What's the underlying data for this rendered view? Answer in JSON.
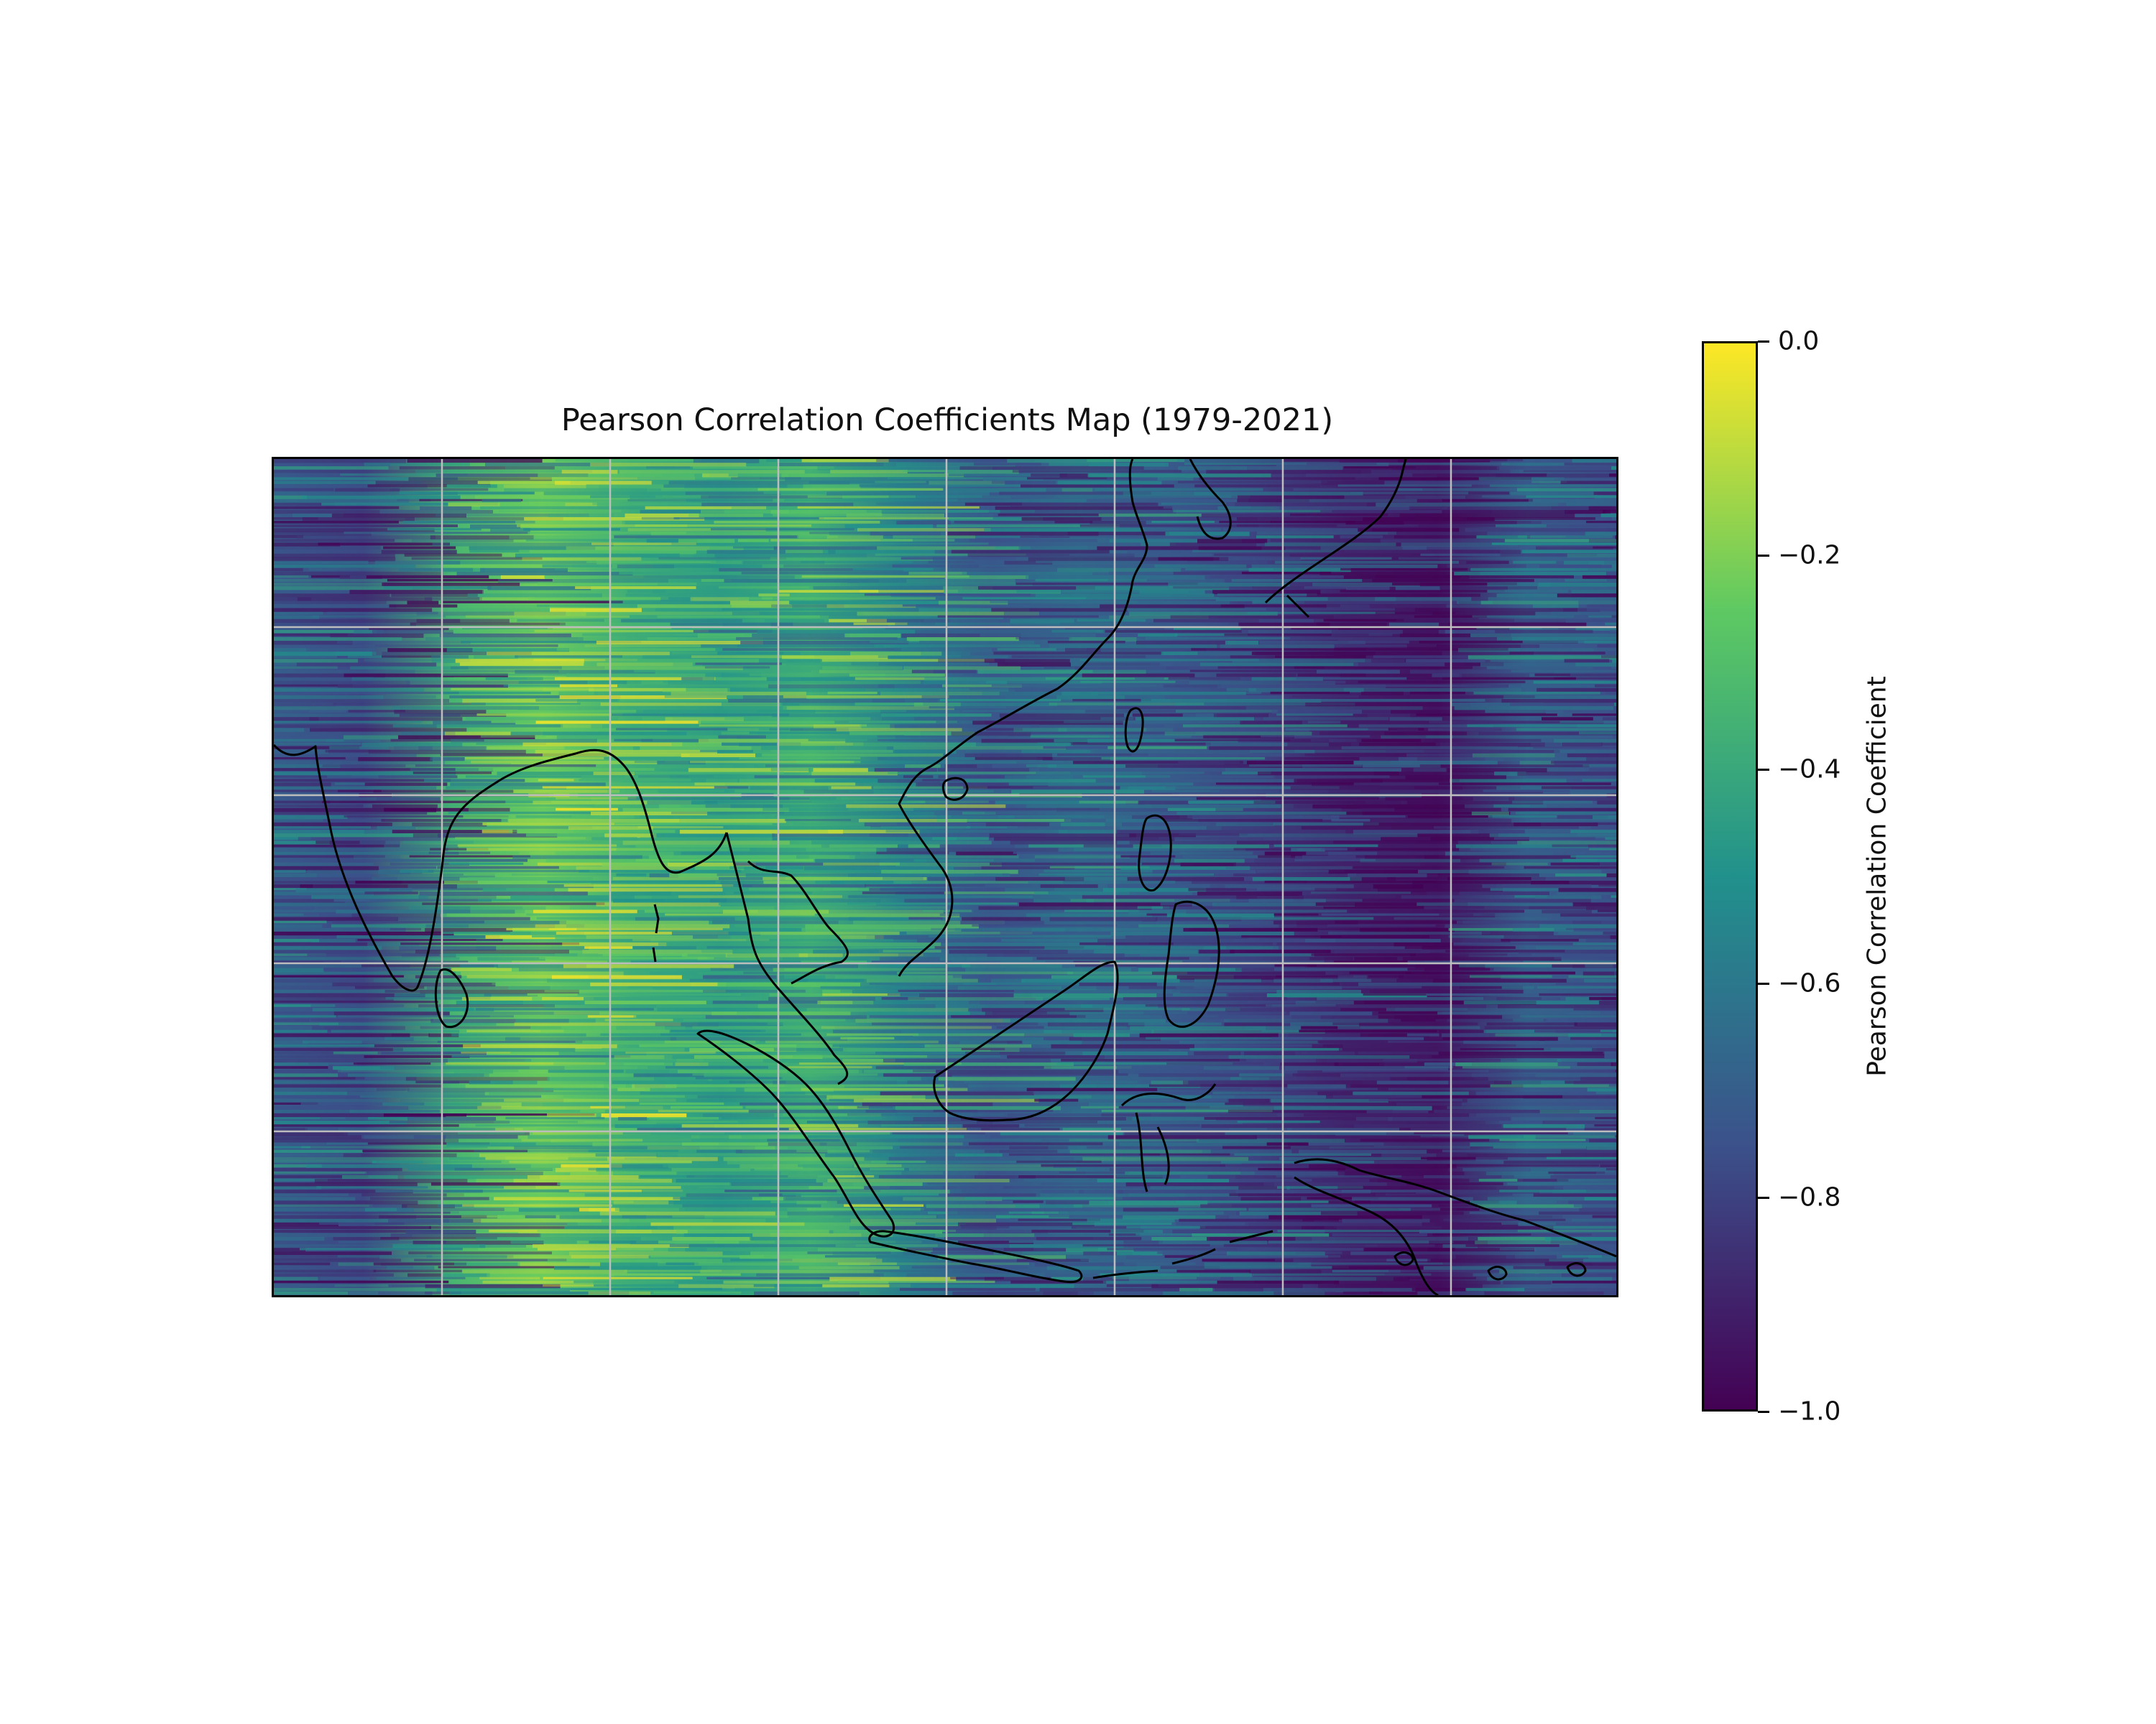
{
  "title": "Pearson Correlation Coefficients Map (1979-2021)",
  "chart_data": {
    "type": "heatmap",
    "title": "Pearson Correlation Coefficients Map (1979-2021)",
    "colormap": "viridis",
    "value_range": [
      -1.0,
      0.0
    ],
    "grid": true,
    "coastlines": true,
    "region": "South and Southeast Asia, East Asia coast, western Pacific",
    "longitude_column_profile": [
      {
        "zone": 0,
        "mean": -0.72
      },
      {
        "zone": 1,
        "mean": -0.78
      },
      {
        "zone": 2,
        "mean": -0.34
      },
      {
        "zone": 3,
        "mean": -0.22
      },
      {
        "zone": 4,
        "mean": -0.38
      },
      {
        "zone": 5,
        "mean": -0.45
      },
      {
        "zone": 6,
        "mean": -0.36
      },
      {
        "zone": 7,
        "mean": -0.58
      },
      {
        "zone": 8,
        "mean": -0.74
      },
      {
        "zone": 9,
        "mean": -0.66
      },
      {
        "zone": 10,
        "mean": -0.72
      },
      {
        "zone": 11,
        "mean": -0.8
      },
      {
        "zone": 12,
        "mean": -0.9
      },
      {
        "zone": 13,
        "mean": -0.94
      },
      {
        "zone": 14,
        "mean": -0.7
      },
      {
        "zone": 15,
        "mean": -0.76
      }
    ]
  },
  "colorbar": {
    "label": "Pearson Correlation Coefficient",
    "ticks": [
      {
        "value": 0.0,
        "label": "0.0"
      },
      {
        "value": -0.2,
        "label": "−0.2"
      },
      {
        "value": -0.4,
        "label": "−0.4"
      },
      {
        "value": -0.6,
        "label": "−0.6"
      },
      {
        "value": -0.8,
        "label": "−0.8"
      },
      {
        "value": -1.0,
        "label": "−1.0"
      }
    ],
    "colors": [
      "#440154",
      "#3b528b",
      "#21918c",
      "#5ec962",
      "#fde725"
    ]
  }
}
